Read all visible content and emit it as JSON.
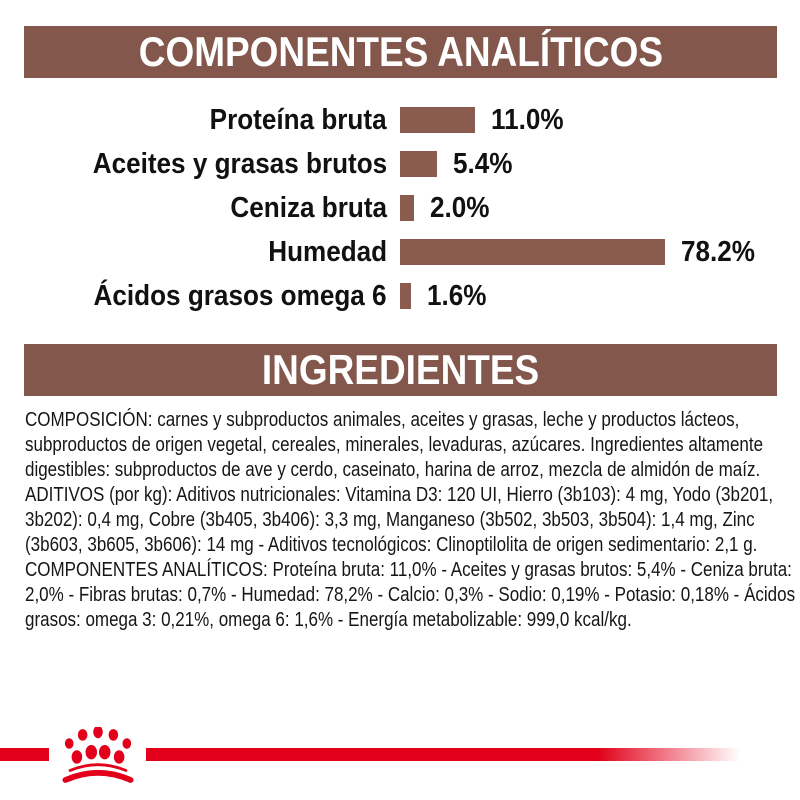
{
  "colors": {
    "brown": "#84574c",
    "bar_brown": "#8a5c50",
    "red": "#e2001a",
    "text": "#161616"
  },
  "sections": {
    "analytical": {
      "title": "COMPONENTES ANALÍTICOS"
    },
    "ingredients": {
      "title": "INGREDIENTES"
    }
  },
  "chart_data": {
    "type": "bar",
    "orientation": "horizontal",
    "title": "COMPONENTES ANALÍTICOS",
    "categories": [
      "Proteína bruta",
      "Aceites y grasas brutos",
      "Ceniza bruta",
      "Humedad",
      "Ácidos grasos omega 6"
    ],
    "values": [
      11.0,
      5.4,
      2.0,
      78.2,
      1.6
    ],
    "value_labels": [
      "11.0%",
      "5.4%",
      "2.0%",
      "78.2%",
      "1.6%"
    ],
    "unit": "%",
    "xlim": [
      0,
      100
    ],
    "bar_color": "#8a5c50",
    "grid": false,
    "legend": false,
    "note": "bar lengths not strictly linear; longest bar (Humedad 78.2%) is visually capped"
  },
  "ingredients_text": {
    "composition": "COMPOSICIÓN: carnes y subproductos animales, aceites y grasas, leche y productos lácteos, subproductos de origen vegetal, cereales, minerales, levaduras, azúcares. Ingredientes altamente digestibles: subproductos de ave y cerdo, caseinato, harina de arroz, mezcla de almidón de maíz.",
    "additives": "ADITIVOS (por kg): Aditivos nutricionales: Vitamina D3: 120 UI, Hierro (3b103): 4 mg, Yodo (3b201, 3b202): 0,4 mg, Cobre (3b405, 3b406): 3,3 mg, Manganeso (3b502, 3b503, 3b504): 1,4 mg, Zinc (3b603, 3b605, 3b606): 14 mg - Aditivos tecnológicos: Clinoptilolita de origen sedimentario: 2,1 g.",
    "analytical_constituents": "COMPONENTES ANALÍTICOS: Proteína bruta: 11,0% - Aceites y grasas brutos: 5,4% - Ceniza bruta: 2,0% - Fibras brutas: 0,7% - Humedad: 78,2% - Calcio: 0,3% - Sodio: 0,19% - Potasio: 0,18% - Ácidos grasos: omega 3: 0,21%, omega 6: 1,6% - Energía metabolizable: 999,0 kcal/kg."
  },
  "icons": {
    "brand_logo": "royal-canin-crown-paw"
  }
}
